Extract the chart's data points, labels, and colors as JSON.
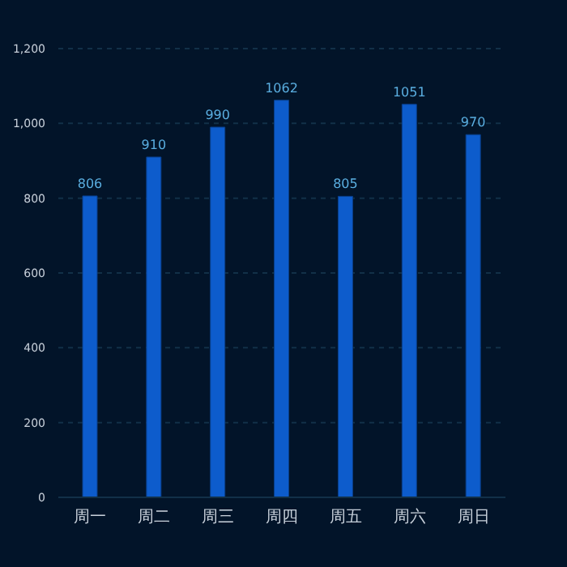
{
  "chart_data": {
    "type": "bar",
    "categories": [
      "周一",
      "周二",
      "周三",
      "周四",
      "周五",
      "周六",
      "周日"
    ],
    "values": [
      806,
      910,
      990,
      1062,
      805,
      1051,
      970
    ],
    "color": "#0d5ccc",
    "ylim": [
      0,
      1200
    ],
    "yticks": [
      0,
      {
        "value": 200,
        "label": "200"
      },
      {
        "value": 400,
        "label": "400"
      },
      {
        "value": 600,
        "label": "600"
      },
      {
        "value": 800,
        "label": "800"
      },
      {
        "value": 1000,
        "label": "1,000"
      },
      {
        "value": 1200,
        "label": "1,200"
      }
    ],
    "grid": "y",
    "data_labels": true
  }
}
